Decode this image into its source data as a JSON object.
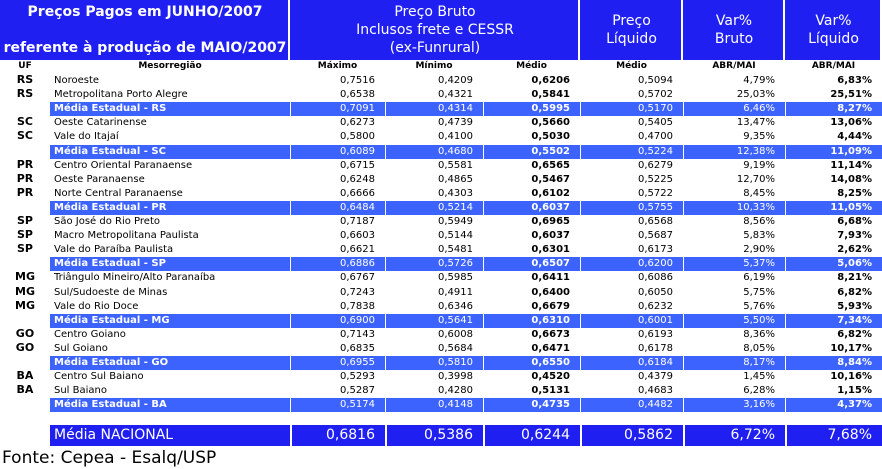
{
  "header": {
    "title": [
      "Preços Pagos em JUNHO/2007",
      "referente à produção de MAIO/2007"
    ],
    "columns": [
      [
        "Preço Bruto",
        "Inclusos frete e CESSR",
        "(ex-Funrural)"
      ],
      [
        "Preço",
        "Líquido"
      ],
      [
        "Var%",
        "Bruto"
      ],
      [
        "Var%",
        "Líquido"
      ]
    ]
  },
  "subheader": [
    "UF",
    "Mesorregião",
    "Máximo",
    "Mínimo",
    "Médio",
    "Médio",
    "ABR/MAI",
    "ABR/MAI"
  ],
  "rows": [
    {
      "uf": "RS",
      "region": "Noroeste",
      "values": [
        "0,7516",
        "0,4209",
        "0,6206",
        "0,5094",
        "4,79%",
        "6,83%"
      ]
    },
    {
      "uf": "RS",
      "region": "Metropolitana Porto Alegre",
      "values": [
        "0,6538",
        "0,4321",
        "0,5841",
        "0,5702",
        "25,03%",
        "25,51%"
      ]
    },
    {
      "region": "Média Estadual - RS",
      "values": [
        "0,7091",
        "0,4314",
        "0,5995",
        "0,5170",
        "6,46%",
        "8,27%"
      ]
    },
    {
      "uf": "SC",
      "region": "Oeste Catarinense",
      "values": [
        "0,6273",
        "0,4739",
        "0,5660",
        "0,5405",
        "13,47%",
        "13,06%"
      ]
    },
    {
      "uf": "SC",
      "region": "Vale do Itajaí",
      "values": [
        "0,5800",
        "0,4100",
        "0,5030",
        "0,4700",
        "9,35%",
        "4,44%"
      ]
    },
    {
      "region": "Média Estadual - SC",
      "values": [
        "0,6089",
        "0,4680",
        "0,5502",
        "0,5224",
        "12,38%",
        "11,09%"
      ]
    },
    {
      "uf": "PR",
      "region": "Centro Oriental Paranaense",
      "values": [
        "0,6715",
        "0,5581",
        "0,6565",
        "0,6279",
        "9,19%",
        "11,14%"
      ]
    },
    {
      "uf": "PR",
      "region": "Oeste Paranaense",
      "values": [
        "0,6248",
        "0,4865",
        "0,5467",
        "0,5225",
        "12,70%",
        "14,08%"
      ]
    },
    {
      "uf": "PR",
      "region": "Norte Central Paranaense",
      "values": [
        "0,6666",
        "0,4303",
        "0,6102",
        "0,5722",
        "8,45%",
        "8,25%"
      ]
    },
    {
      "region": "Média Estadual - PR",
      "values": [
        "0,6484",
        "0,5214",
        "0,6037",
        "0,5755",
        "10,33%",
        "11,05%"
      ]
    },
    {
      "uf": "SP",
      "region": "São José do Rio Preto",
      "values": [
        "0,7187",
        "0,5949",
        "0,6965",
        "0,6568",
        "8,56%",
        "6,68%"
      ]
    },
    {
      "uf": "SP",
      "region": "Macro Metropolitana Paulista",
      "values": [
        "0,6603",
        "0,5144",
        "0,6037",
        "0,5687",
        "5,83%",
        "7,93%"
      ]
    },
    {
      "uf": "SP",
      "region": "Vale do Paraíba Paulista",
      "values": [
        "0,6621",
        "0,5481",
        "0,6301",
        "0,6173",
        "2,90%",
        "2,62%"
      ]
    },
    {
      "region": "Média Estadual - SP",
      "values": [
        "0,6886",
        "0,5726",
        "0,6507",
        "0,6200",
        "5,37%",
        "5,06%"
      ]
    },
    {
      "uf": "MG",
      "region": "Triângulo Mineiro/Alto Paranaíba",
      "values": [
        "0,6767",
        "0,5985",
        "0,6411",
        "0,6086",
        "6,19%",
        "8,21%"
      ]
    },
    {
      "uf": "MG",
      "region": "Sul/Sudoeste de Minas",
      "values": [
        "0,7243",
        "0,4911",
        "0,6400",
        "0,6050",
        "5,75%",
        "6,82%"
      ]
    },
    {
      "uf": "MG",
      "region": "Vale do Rio Doce",
      "values": [
        "0,7838",
        "0,6346",
        "0,6679",
        "0,6232",
        "5,76%",
        "5,93%"
      ]
    },
    {
      "region": "Média Estadual - MG",
      "values": [
        "0,6900",
        "0,5641",
        "0,6310",
        "0,6001",
        "5,50%",
        "7,34%"
      ]
    },
    {
      "uf": "GO",
      "region": "Centro Goiano",
      "values": [
        "0,7143",
        "0,6008",
        "0,6673",
        "0,6193",
        "8,36%",
        "6,82%"
      ]
    },
    {
      "uf": "GO",
      "region": "Sul Goiano",
      "values": [
        "0,6835",
        "0,5684",
        "0,6471",
        "0,6178",
        "8,05%",
        "10,17%"
      ]
    },
    {
      "region": "Média Estadual - GO",
      "values": [
        "0,6955",
        "0,5810",
        "0,6550",
        "0,6184",
        "8,17%",
        "8,84%"
      ]
    },
    {
      "uf": "BA",
      "region": "Centro Sul Baiano",
      "values": [
        "0,5293",
        "0,3998",
        "0,4520",
        "0,4379",
        "1,45%",
        "10,16%"
      ]
    },
    {
      "uf": "BA",
      "region": "Sul Baiano",
      "values": [
        "0,5287",
        "0,4280",
        "0,5131",
        "0,4683",
        "6,28%",
        "1,15%"
      ]
    },
    {
      "region": "Média Estadual - BA",
      "values": [
        "0,5174",
        "0,4148",
        "0,4735",
        "0,4482",
        "3,16%",
        "4,37%"
      ]
    }
  ],
  "national": {
    "label": "Média NACIONAL",
    "values": [
      "0,6816",
      "0,5386",
      "0,6244",
      "0,5862",
      "6,72%",
      "7,68%"
    ]
  },
  "source": "Fonte: Cepea - Esalq/USP"
}
